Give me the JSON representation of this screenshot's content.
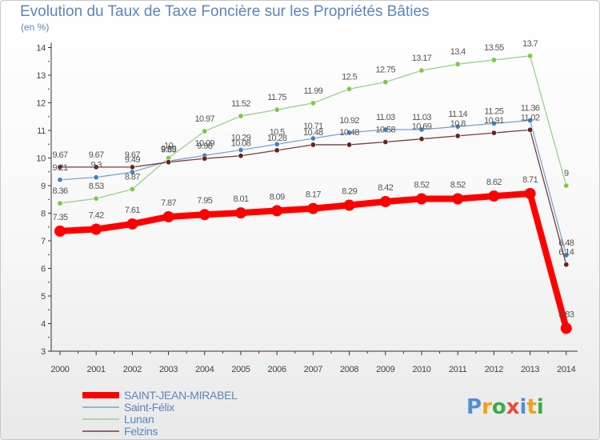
{
  "chart_data": {
    "type": "line",
    "title": "Evolution du Taux de Taxe Foncière sur les Propriétés Bâties",
    "subtitle": "(en %)",
    "xlabel": "",
    "ylabel": "",
    "x": [
      2000,
      2001,
      2002,
      2003,
      2004,
      2005,
      2006,
      2007,
      2008,
      2009,
      2010,
      2011,
      2012,
      2013,
      2014
    ],
    "ylim": [
      3,
      14
    ],
    "yticks": [
      3,
      4,
      5,
      6,
      7,
      8,
      9,
      10,
      11,
      12,
      13,
      14
    ],
    "grid": false,
    "legend_position": "bottom-left",
    "series": [
      {
        "name": "SAINT-JEAN-MIRABEL",
        "color": "#ff0000",
        "emphasis": true,
        "values": [
          7.35,
          7.42,
          7.61,
          7.87,
          7.95,
          8.01,
          8.09,
          8.17,
          8.29,
          8.42,
          8.52,
          8.52,
          8.62,
          8.71,
          3.83
        ]
      },
      {
        "name": "Saint-Félix",
        "color": "#7ba3cc",
        "marker": "#3d83c4",
        "values": [
          9.21,
          9.3,
          9.49,
          9.89,
          10.09,
          10.29,
          10.5,
          10.71,
          10.92,
          11.03,
          11.03,
          11.14,
          11.25,
          11.36,
          6.48
        ]
      },
      {
        "name": "Lunan",
        "color": "#9ad08a",
        "marker": "#7ac943",
        "values": [
          8.36,
          8.53,
          8.87,
          10,
          10.97,
          11.52,
          11.75,
          11.99,
          12.5,
          12.75,
          13.17,
          13.4,
          13.55,
          13.7,
          9
        ]
      },
      {
        "name": "Felzins",
        "color": "#7a3b3b",
        "marker": "#6b2020",
        "values": [
          9.67,
          9.67,
          9.67,
          9.85,
          9.98,
          10.08,
          10.28,
          10.48,
          10.48,
          10.58,
          10.69,
          10.8,
          10.91,
          11.02,
          6.14
        ]
      }
    ]
  },
  "logo": {
    "text": "Proxiti"
  }
}
